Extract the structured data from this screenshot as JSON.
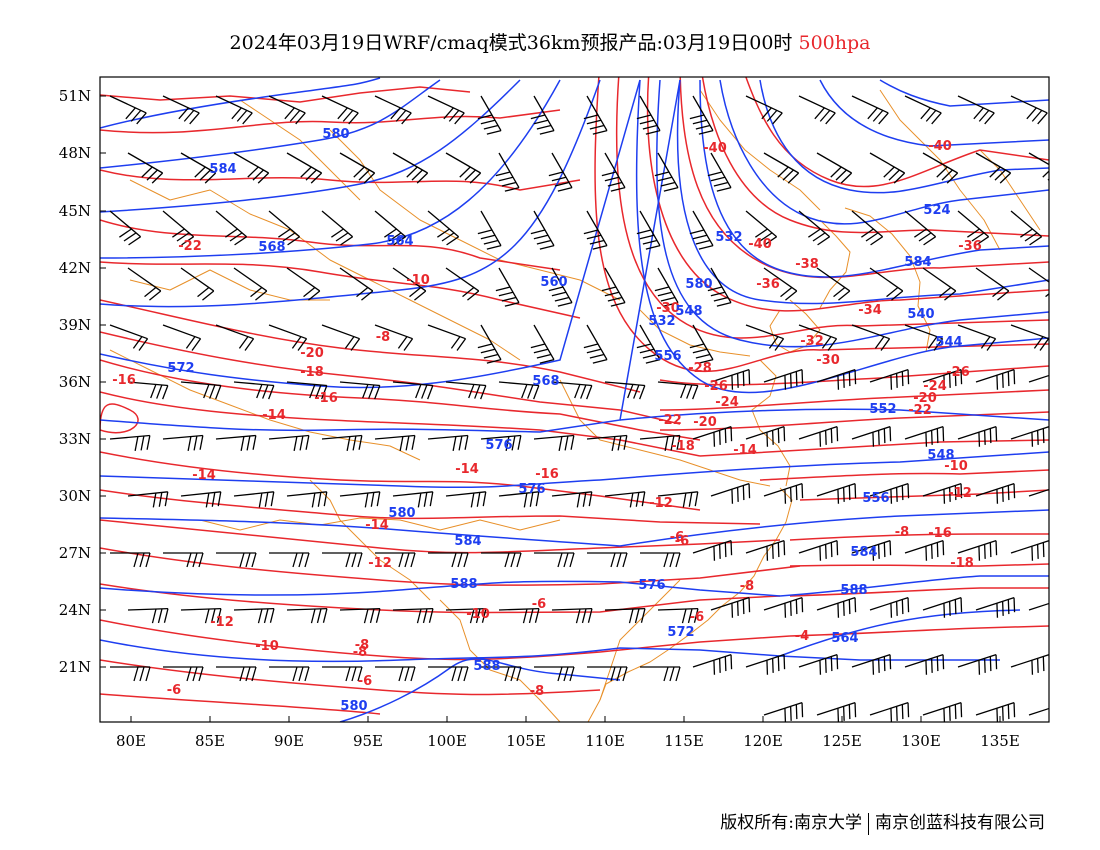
{
  "title": {
    "main": "2024年03月19日WRF/cmaq模式36km预报产品:03月19日00时",
    "level": "500hpa"
  },
  "colors": {
    "height": "#1e3ef0",
    "temperature": "#e8282d",
    "coast": "#e8902a",
    "wind": "#000000"
  },
  "lat_labels": [
    "51N",
    "48N",
    "45N",
    "42N",
    "39N",
    "36N",
    "33N",
    "30N",
    "27N",
    "24N",
    "21N"
  ],
  "lon_labels": [
    "80E",
    "85E",
    "90E",
    "95E",
    "100E",
    "105E",
    "110E",
    "115E",
    "120E",
    "125E",
    "130E",
    "135E"
  ],
  "credit": {
    "left": "版权所有:南京大学",
    "right": "南京创蓝科技有限公司"
  },
  "height_labels": [
    "580",
    "584",
    "568",
    "564",
    "560",
    "532",
    "524",
    "540",
    "548",
    "556",
    "544",
    "572",
    "568",
    "576",
    "576",
    "580",
    "584",
    "588",
    "588",
    "580",
    "584",
    "588",
    "572",
    "564",
    "556",
    "548",
    "552",
    "532",
    "584",
    "576",
    "580"
  ],
  "temperature_labels": [
    "-40",
    "-40",
    "-36",
    "-40",
    "-38",
    "-36",
    "-34",
    "-32",
    "-30",
    "-30",
    "-28",
    "-26",
    "-24",
    "-26",
    "-24",
    "-22",
    "-22",
    "-20",
    "-20",
    "-18",
    "-16",
    "-14",
    "-12",
    "-22",
    "-20",
    "-18",
    "-16",
    "-14",
    "-16",
    "-14",
    "-12",
    "-10",
    "-8",
    "-6",
    "-8",
    "-6",
    "-10",
    "-8",
    "-6",
    "-4",
    "-14",
    "-12",
    "-10",
    "-12",
    "-8",
    "-6",
    "-8",
    "-6",
    "-16",
    "-18",
    "-14",
    "-10",
    "-8",
    "-6"
  ]
}
